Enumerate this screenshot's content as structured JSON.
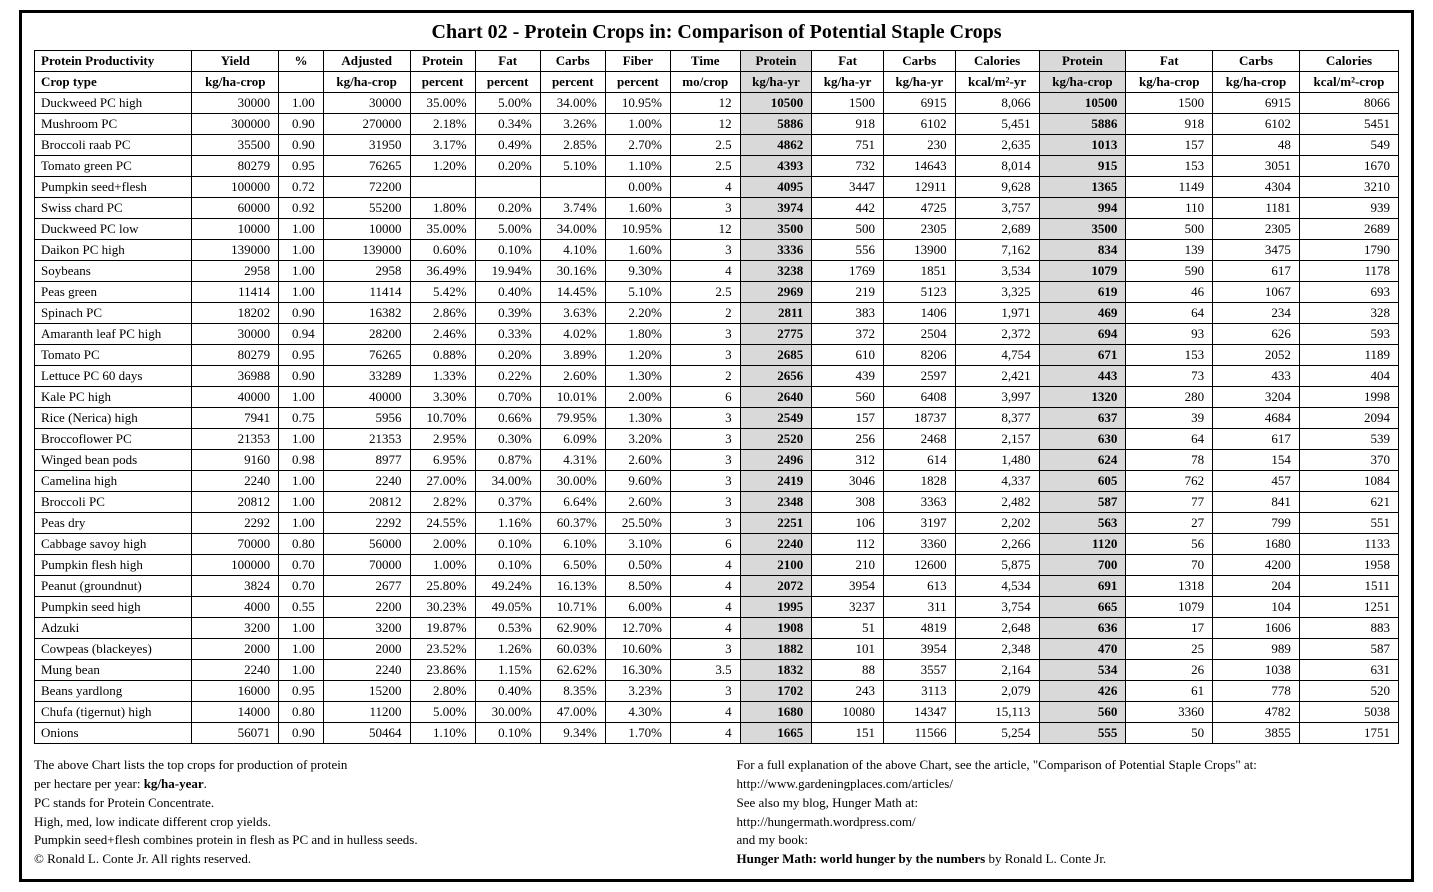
{
  "title": "Chart 02 - Protein Crops in: Comparison of Potential Staple Crops",
  "table": {
    "header1": [
      "Protein Productivity",
      "Yield",
      "%",
      "Adjusted",
      "Protein",
      "Fat",
      "Carbs",
      "Fiber",
      "Time",
      "Protein",
      "Fat",
      "Carbs",
      "Calories",
      "Protein",
      "Fat",
      "Carbs",
      "Calories"
    ],
    "header2": [
      "Crop type",
      "kg/ha-crop",
      "",
      "kg/ha-crop",
      "percent",
      "percent",
      "percent",
      "percent",
      "mo/crop",
      "kg/ha-yr",
      "kg/ha-yr",
      "kg/ha-yr",
      "kcal/m²-yr",
      "kg/ha-crop",
      "kg/ha-crop",
      "kg/ha-crop",
      "kcal/m²-crop"
    ],
    "highlight_columns": [
      9,
      13
    ],
    "rows": [
      [
        "Duckweed PC high",
        "30000",
        "1.00",
        "30000",
        "35.00%",
        "5.00%",
        "34.00%",
        "10.95%",
        "12",
        "10500",
        "1500",
        "6915",
        "8,066",
        "10500",
        "1500",
        "6915",
        "8066"
      ],
      [
        "Mushroom PC",
        "300000",
        "0.90",
        "270000",
        "2.18%",
        "0.34%",
        "3.26%",
        "1.00%",
        "12",
        "5886",
        "918",
        "6102",
        "5,451",
        "5886",
        "918",
        "6102",
        "5451"
      ],
      [
        "Broccoli raab PC",
        "35500",
        "0.90",
        "31950",
        "3.17%",
        "0.49%",
        "2.85%",
        "2.70%",
        "2.5",
        "4862",
        "751",
        "230",
        "2,635",
        "1013",
        "157",
        "48",
        "549"
      ],
      [
        "Tomato green PC",
        "80279",
        "0.95",
        "76265",
        "1.20%",
        "0.20%",
        "5.10%",
        "1.10%",
        "2.5",
        "4393",
        "732",
        "14643",
        "8,014",
        "915",
        "153",
        "3051",
        "1670"
      ],
      [
        "Pumpkin seed+flesh",
        "100000",
        "0.72",
        "72200",
        "",
        "",
        "",
        "0.00%",
        "4",
        "4095",
        "3447",
        "12911",
        "9,628",
        "1365",
        "1149",
        "4304",
        "3210"
      ],
      [
        "Swiss chard PC",
        "60000",
        "0.92",
        "55200",
        "1.80%",
        "0.20%",
        "3.74%",
        "1.60%",
        "3",
        "3974",
        "442",
        "4725",
        "3,757",
        "994",
        "110",
        "1181",
        "939"
      ],
      [
        "Duckweed PC low",
        "10000",
        "1.00",
        "10000",
        "35.00%",
        "5.00%",
        "34.00%",
        "10.95%",
        "12",
        "3500",
        "500",
        "2305",
        "2,689",
        "3500",
        "500",
        "2305",
        "2689"
      ],
      [
        "Daikon PC high",
        "139000",
        "1.00",
        "139000",
        "0.60%",
        "0.10%",
        "4.10%",
        "1.60%",
        "3",
        "3336",
        "556",
        "13900",
        "7,162",
        "834",
        "139",
        "3475",
        "1790"
      ],
      [
        "Soybeans",
        "2958",
        "1.00",
        "2958",
        "36.49%",
        "19.94%",
        "30.16%",
        "9.30%",
        "4",
        "3238",
        "1769",
        "1851",
        "3,534",
        "1079",
        "590",
        "617",
        "1178"
      ],
      [
        "Peas green",
        "11414",
        "1.00",
        "11414",
        "5.42%",
        "0.40%",
        "14.45%",
        "5.10%",
        "2.5",
        "2969",
        "219",
        "5123",
        "3,325",
        "619",
        "46",
        "1067",
        "693"
      ],
      [
        "Spinach PC",
        "18202",
        "0.90",
        "16382",
        "2.86%",
        "0.39%",
        "3.63%",
        "2.20%",
        "2",
        "2811",
        "383",
        "1406",
        "1,971",
        "469",
        "64",
        "234",
        "328"
      ],
      [
        "Amaranth leaf PC high",
        "30000",
        "0.94",
        "28200",
        "2.46%",
        "0.33%",
        "4.02%",
        "1.80%",
        "3",
        "2775",
        "372",
        "2504",
        "2,372",
        "694",
        "93",
        "626",
        "593"
      ],
      [
        "Tomato PC",
        "80279",
        "0.95",
        "76265",
        "0.88%",
        "0.20%",
        "3.89%",
        "1.20%",
        "3",
        "2685",
        "610",
        "8206",
        "4,754",
        "671",
        "153",
        "2052",
        "1189"
      ],
      [
        "Lettuce PC 60 days",
        "36988",
        "0.90",
        "33289",
        "1.33%",
        "0.22%",
        "2.60%",
        "1.30%",
        "2",
        "2656",
        "439",
        "2597",
        "2,421",
        "443",
        "73",
        "433",
        "404"
      ],
      [
        "Kale PC high",
        "40000",
        "1.00",
        "40000",
        "3.30%",
        "0.70%",
        "10.01%",
        "2.00%",
        "6",
        "2640",
        "560",
        "6408",
        "3,997",
        "1320",
        "280",
        "3204",
        "1998"
      ],
      [
        "Rice (Nerica) high",
        "7941",
        "0.75",
        "5956",
        "10.70%",
        "0.66%",
        "79.95%",
        "1.30%",
        "3",
        "2549",
        "157",
        "18737",
        "8,377",
        "637",
        "39",
        "4684",
        "2094"
      ],
      [
        "Broccoflower PC",
        "21353",
        "1.00",
        "21353",
        "2.95%",
        "0.30%",
        "6.09%",
        "3.20%",
        "3",
        "2520",
        "256",
        "2468",
        "2,157",
        "630",
        "64",
        "617",
        "539"
      ],
      [
        "Winged bean pods",
        "9160",
        "0.98",
        "8977",
        "6.95%",
        "0.87%",
        "4.31%",
        "2.60%",
        "3",
        "2496",
        "312",
        "614",
        "1,480",
        "624",
        "78",
        "154",
        "370"
      ],
      [
        "Camelina high",
        "2240",
        "1.00",
        "2240",
        "27.00%",
        "34.00%",
        "30.00%",
        "9.60%",
        "3",
        "2419",
        "3046",
        "1828",
        "4,337",
        "605",
        "762",
        "457",
        "1084"
      ],
      [
        "Broccoli PC",
        "20812",
        "1.00",
        "20812",
        "2.82%",
        "0.37%",
        "6.64%",
        "2.60%",
        "3",
        "2348",
        "308",
        "3363",
        "2,482",
        "587",
        "77",
        "841",
        "621"
      ],
      [
        "Peas dry",
        "2292",
        "1.00",
        "2292",
        "24.55%",
        "1.16%",
        "60.37%",
        "25.50%",
        "3",
        "2251",
        "106",
        "3197",
        "2,202",
        "563",
        "27",
        "799",
        "551"
      ],
      [
        "Cabbage savoy high",
        "70000",
        "0.80",
        "56000",
        "2.00%",
        "0.10%",
        "6.10%",
        "3.10%",
        "6",
        "2240",
        "112",
        "3360",
        "2,266",
        "1120",
        "56",
        "1680",
        "1133"
      ],
      [
        "Pumpkin flesh high",
        "100000",
        "0.70",
        "70000",
        "1.00%",
        "0.10%",
        "6.50%",
        "0.50%",
        "4",
        "2100",
        "210",
        "12600",
        "5,875",
        "700",
        "70",
        "4200",
        "1958"
      ],
      [
        "Peanut (groundnut)",
        "3824",
        "0.70",
        "2677",
        "25.80%",
        "49.24%",
        "16.13%",
        "8.50%",
        "4",
        "2072",
        "3954",
        "613",
        "4,534",
        "691",
        "1318",
        "204",
        "1511"
      ],
      [
        "Pumpkin seed high",
        "4000",
        "0.55",
        "2200",
        "30.23%",
        "49.05%",
        "10.71%",
        "6.00%",
        "4",
        "1995",
        "3237",
        "311",
        "3,754",
        "665",
        "1079",
        "104",
        "1251"
      ],
      [
        "Adzuki",
        "3200",
        "1.00",
        "3200",
        "19.87%",
        "0.53%",
        "62.90%",
        "12.70%",
        "4",
        "1908",
        "51",
        "4819",
        "2,648",
        "636",
        "17",
        "1606",
        "883"
      ],
      [
        "Cowpeas (blackeyes)",
        "2000",
        "1.00",
        "2000",
        "23.52%",
        "1.26%",
        "60.03%",
        "10.60%",
        "3",
        "1882",
        "101",
        "3954",
        "2,348",
        "470",
        "25",
        "989",
        "587"
      ],
      [
        "Mung bean",
        "2240",
        "1.00",
        "2240",
        "23.86%",
        "1.15%",
        "62.62%",
        "16.30%",
        "3.5",
        "1832",
        "88",
        "3557",
        "2,164",
        "534",
        "26",
        "1038",
        "631"
      ],
      [
        "Beans yardlong",
        "16000",
        "0.95",
        "15200",
        "2.80%",
        "0.40%",
        "8.35%",
        "3.23%",
        "3",
        "1702",
        "243",
        "3113",
        "2,079",
        "426",
        "61",
        "778",
        "520"
      ],
      [
        "Chufa (tigernut) high",
        "14000",
        "0.80",
        "11200",
        "5.00%",
        "30.00%",
        "47.00%",
        "4.30%",
        "4",
        "1680",
        "10080",
        "14347",
        "15,113",
        "560",
        "3360",
        "4782",
        "5038"
      ],
      [
        "Onions",
        "56071",
        "0.90",
        "50464",
        "1.10%",
        "0.10%",
        "9.34%",
        "1.70%",
        "4",
        "1665",
        "151",
        "11566",
        "5,254",
        "555",
        "50",
        "3855",
        "1751"
      ]
    ]
  },
  "footer_left": {
    "l1a": "The above Chart lists the top crops for production of protein",
    "l2a": "per hectare per year: ",
    "l2b": "kg/ha-year",
    "l2c": ".",
    "l3": "PC stands for Protein Concentrate.",
    "l4": "High, med, low indicate different crop yields.",
    "l5": "Pumpkin seed+flesh combines protein in flesh as PC and in hulless seeds.",
    "l6": "© Ronald L. Conte Jr. All rights reserved."
  },
  "footer_right": {
    "l1": "For a full explanation of the above Chart, see the article, \"Comparison of Potential Staple Crops\" at:",
    "l2": "http://www.gardeningplaces.com/articles/",
    "l3": "See also my blog, Hunger Math at:",
    "l4": "http://hungermath.wordpress.com/",
    "l5": "and my book:",
    "l6a": "Hunger Math: world hunger by the numbers",
    "l6b": " by Ronald L. Conte Jr."
  },
  "style": {
    "background": "#ffffff",
    "border_color": "#000000",
    "highlight_bg": "#d9d9d9",
    "font_family": "Times New Roman",
    "title_fontsize": 20,
    "body_fontsize": 13
  }
}
